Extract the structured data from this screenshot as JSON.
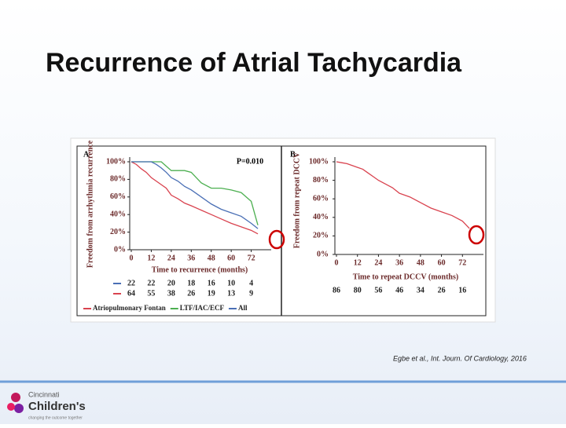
{
  "title": "Recurrence of Atrial Tachycardia",
  "citation": "Egbe et al., Int. Journ. Of Cardiology, 2016",
  "logo": {
    "line1": "Cincinnati",
    "line2": "Children's",
    "tagline": "changing the outcome together"
  },
  "chart_data": [
    {
      "type": "line",
      "panel": "A",
      "annotation": "P=0.010",
      "y_label": "Freedom from arrhythmia recurrence",
      "x_label": "Time to recurrence (months)",
      "xlim": [
        0,
        84
      ],
      "ylim": [
        0,
        100
      ],
      "xticks": [
        0,
        12,
        24,
        36,
        48,
        60,
        72
      ],
      "yticks": [
        {
          "value": 0,
          "label": "0%"
        },
        {
          "value": 20,
          "label": "20%"
        },
        {
          "value": 40,
          "label": "40%"
        },
        {
          "value": 60,
          "label": "60%"
        },
        {
          "value": 80,
          "label": "80%"
        },
        {
          "value": 100,
          "label": "100%"
        }
      ],
      "x": [
        0,
        3,
        6,
        9,
        12,
        15,
        18,
        21,
        24,
        28,
        32,
        36,
        42,
        48,
        54,
        60,
        66,
        72,
        76
      ],
      "series": [
        {
          "name": "Atriopulmonary Fontan",
          "color": "#d9434f",
          "values": [
            100,
            97,
            92,
            88,
            82,
            78,
            74,
            70,
            62,
            58,
            53,
            50,
            45,
            40,
            35,
            30,
            26,
            22,
            18
          ]
        },
        {
          "name": "LTF/IAC/ECF",
          "color": "#4caf50",
          "values": [
            100,
            100,
            100,
            100,
            100,
            100,
            100,
            95,
            90,
            90,
            90,
            88,
            76,
            70,
            70,
            68,
            65,
            55,
            28
          ]
        },
        {
          "name": "All",
          "color": "#4a6fb5",
          "values": [
            100,
            100,
            100,
            100,
            100,
            97,
            93,
            88,
            82,
            78,
            72,
            68,
            60,
            52,
            46,
            42,
            38,
            30,
            24
          ]
        }
      ],
      "at_risk": [
        {
          "color": "#4a6fb5",
          "values": [
            22,
            22,
            20,
            18,
            16,
            10,
            4
          ]
        },
        {
          "color": "#d9434f",
          "values": [
            64,
            55,
            38,
            26,
            19,
            13,
            9
          ]
        }
      ]
    },
    {
      "type": "line",
      "panel": "B",
      "y_label": "Freedom from repeat DCCV",
      "x_label": "Time to repeat DCCV (months)",
      "xlim": [
        0,
        84
      ],
      "ylim": [
        0,
        100
      ],
      "xticks": [
        0,
        12,
        24,
        36,
        48,
        60,
        72
      ],
      "yticks": [
        {
          "value": 0,
          "label": "0%"
        },
        {
          "value": 20,
          "label": "20%"
        },
        {
          "value": 40,
          "label": "40%"
        },
        {
          "value": 60,
          "label": "60%"
        },
        {
          "value": 80,
          "label": "80%"
        },
        {
          "value": 100,
          "label": "100%"
        }
      ],
      "x": [
        0,
        3,
        6,
        9,
        12,
        15,
        18,
        21,
        24,
        28,
        32,
        36,
        42,
        48,
        54,
        60,
        66,
        72,
        76
      ],
      "series": [
        {
          "color": "#d9434f",
          "values": [
            100,
            99,
            98,
            96,
            94,
            92,
            88,
            84,
            80,
            76,
            72,
            66,
            62,
            56,
            50,
            46,
            42,
            36,
            28
          ]
        }
      ],
      "at_risk": [
        {
          "values": [
            86,
            80,
            56,
            46,
            34,
            26,
            16
          ]
        }
      ]
    }
  ]
}
